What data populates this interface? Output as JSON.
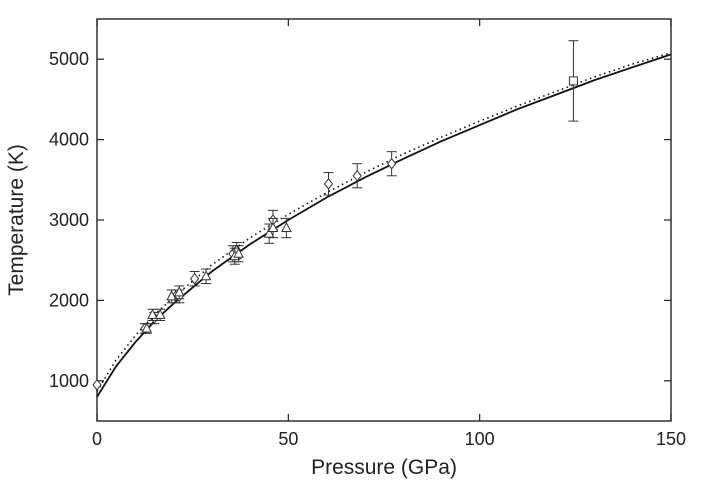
{
  "chart_data": {
    "type": "scatter",
    "xlabel": "Pressure (GPa)",
    "ylabel": "Temperature (K)",
    "xlim": [
      0,
      150
    ],
    "ylim": [
      500,
      5500
    ],
    "xticks": [
      0,
      50,
      100,
      150
    ],
    "yticks": [
      1000,
      2000,
      3000,
      4000,
      5000
    ],
    "grid": false,
    "curves": [
      {
        "style": "solid",
        "points": [
          [
            0,
            800
          ],
          [
            5,
            1180
          ],
          [
            10,
            1480
          ],
          [
            15,
            1740
          ],
          [
            20,
            1960
          ],
          [
            30,
            2360
          ],
          [
            40,
            2700
          ],
          [
            50,
            3000
          ],
          [
            60,
            3280
          ],
          [
            70,
            3530
          ],
          [
            80,
            3760
          ],
          [
            90,
            3980
          ],
          [
            100,
            4180
          ],
          [
            110,
            4380
          ],
          [
            120,
            4560
          ],
          [
            130,
            4740
          ],
          [
            140,
            4900
          ],
          [
            150,
            5060
          ]
        ]
      },
      {
        "style": "dotted",
        "points": [
          [
            0,
            870
          ],
          [
            5,
            1260
          ],
          [
            10,
            1560
          ],
          [
            15,
            1820
          ],
          [
            20,
            2040
          ],
          [
            30,
            2440
          ],
          [
            40,
            2780
          ],
          [
            50,
            3070
          ],
          [
            60,
            3340
          ],
          [
            70,
            3590
          ],
          [
            80,
            3820
          ],
          [
            90,
            4030
          ],
          [
            100,
            4230
          ],
          [
            110,
            4420
          ],
          [
            120,
            4600
          ],
          [
            130,
            4780
          ],
          [
            140,
            4940
          ],
          [
            150,
            5080
          ]
        ]
      }
    ],
    "series": [
      {
        "marker": "diamond",
        "points": [
          {
            "x": 0,
            "y": 950,
            "err": 0
          },
          {
            "x": 12.5,
            "y": 1650,
            "err": 60
          },
          {
            "x": 15,
            "y": 1780,
            "err": 70
          },
          {
            "x": 20.5,
            "y": 2050,
            "err": 80
          },
          {
            "x": 21.5,
            "y": 2050,
            "err": 80
          },
          {
            "x": 25.5,
            "y": 2270,
            "err": 90
          },
          {
            "x": 35.5,
            "y": 2580,
            "err": 100
          },
          {
            "x": 36.5,
            "y": 2620,
            "err": 100
          },
          {
            "x": 46,
            "y": 3000,
            "err": 120
          },
          {
            "x": 60.5,
            "y": 3450,
            "err": 140
          },
          {
            "x": 68,
            "y": 3550,
            "err": 150
          },
          {
            "x": 77,
            "y": 3700,
            "err": 150
          }
        ]
      },
      {
        "marker": "triangle",
        "points": [
          {
            "x": 13,
            "y": 1650,
            "err": 60
          },
          {
            "x": 14.5,
            "y": 1820,
            "err": 70
          },
          {
            "x": 16.5,
            "y": 1820,
            "err": 70
          },
          {
            "x": 19.5,
            "y": 2050,
            "err": 80
          },
          {
            "x": 21.5,
            "y": 2100,
            "err": 80
          },
          {
            "x": 28.5,
            "y": 2300,
            "err": 90
          },
          {
            "x": 36,
            "y": 2550,
            "err": 100
          },
          {
            "x": 37,
            "y": 2580,
            "err": 100
          },
          {
            "x": 45,
            "y": 2830,
            "err": 120
          },
          {
            "x": 46,
            "y": 2900,
            "err": 120
          },
          {
            "x": 49.5,
            "y": 2900,
            "err": 120
          }
        ]
      },
      {
        "marker": "square",
        "points": [
          {
            "x": 124.5,
            "y": 4730,
            "err": 500
          }
        ]
      }
    ]
  }
}
